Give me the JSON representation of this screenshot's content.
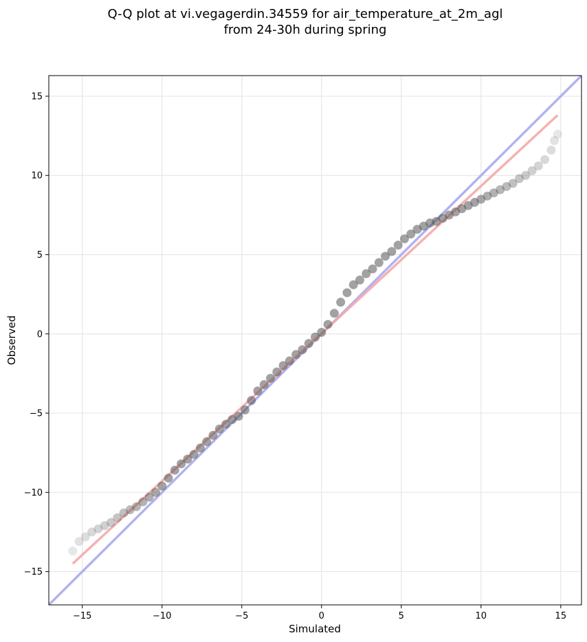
{
  "chart_data": {
    "type": "scatter",
    "title_line1": "Q-Q plot at vi.vegagerdin.34559 for air_temperature_at_2m_agl",
    "title_line2": "from 24-30h during spring",
    "xlabel": "Simulated",
    "ylabel": "Observed",
    "xlim": [
      -17.1,
      16.3
    ],
    "ylim": [
      -17.1,
      16.3
    ],
    "xticks": [
      -15,
      -10,
      -5,
      0,
      5,
      10,
      15
    ],
    "yticks": [
      -15,
      -10,
      -5,
      0,
      5,
      10,
      15
    ],
    "xtick_labels": [
      "−15",
      "−10",
      "−5",
      "0",
      "5",
      "10",
      "15"
    ],
    "ytick_labels": [
      "−15",
      "−10",
      "−5",
      "0",
      "5",
      "10",
      "15"
    ],
    "grid": true,
    "reference_line": {
      "name": "1:1",
      "color": "#aaaaee",
      "x": [
        -17.1,
        16.3
      ],
      "y": [
        -17.1,
        16.3
      ]
    },
    "fit_line": {
      "color": "#f4a8a8",
      "x": [
        -15.6,
        14.8
      ],
      "y": [
        -14.5,
        13.8
      ]
    },
    "quantiles": {
      "point_color": "#555555",
      "x": [
        -15.6,
        -15.2,
        -14.8,
        -14.4,
        -14.0,
        -13.6,
        -13.2,
        -12.8,
        -12.4,
        -12.0,
        -11.6,
        -11.2,
        -10.8,
        -10.4,
        -10.0,
        -9.6,
        -9.2,
        -8.8,
        -8.4,
        -8.0,
        -7.6,
        -7.2,
        -6.8,
        -6.4,
        -6.0,
        -5.6,
        -5.2,
        -4.8,
        -4.4,
        -4.0,
        -3.6,
        -3.2,
        -2.8,
        -2.4,
        -2.0,
        -1.6,
        -1.2,
        -0.8,
        -0.4,
        0.0,
        0.4,
        0.8,
        1.2,
        1.6,
        2.0,
        2.4,
        2.8,
        3.2,
        3.6,
        4.0,
        4.4,
        4.8,
        5.2,
        5.6,
        6.0,
        6.4,
        6.8,
        7.2,
        7.6,
        8.0,
        8.4,
        8.8,
        9.2,
        9.6,
        10.0,
        10.4,
        10.8,
        11.2,
        11.6,
        12.0,
        12.4,
        12.8,
        13.2,
        13.6,
        14.0,
        14.4,
        14.6,
        14.8
      ],
      "y": [
        -13.7,
        -13.1,
        -12.8,
        -12.5,
        -12.3,
        -12.1,
        -11.9,
        -11.6,
        -11.3,
        -11.1,
        -10.9,
        -10.6,
        -10.3,
        -10.0,
        -9.6,
        -9.1,
        -8.6,
        -8.2,
        -7.9,
        -7.6,
        -7.2,
        -6.8,
        -6.4,
        -6.0,
        -5.7,
        -5.4,
        -5.2,
        -4.8,
        -4.2,
        -3.6,
        -3.2,
        -2.8,
        -2.4,
        -2.0,
        -1.7,
        -1.3,
        -1.0,
        -0.6,
        -0.2,
        0.1,
        0.6,
        1.3,
        2.0,
        2.6,
        3.1,
        3.4,
        3.8,
        4.1,
        4.5,
        4.9,
        5.2,
        5.6,
        6.0,
        6.3,
        6.6,
        6.8,
        7.0,
        7.1,
        7.3,
        7.5,
        7.7,
        7.9,
        8.1,
        8.3,
        8.5,
        8.7,
        8.9,
        9.1,
        9.3,
        9.5,
        9.8,
        10.0,
        10.3,
        10.6,
        11.0,
        11.6,
        12.2,
        12.6
      ]
    }
  }
}
